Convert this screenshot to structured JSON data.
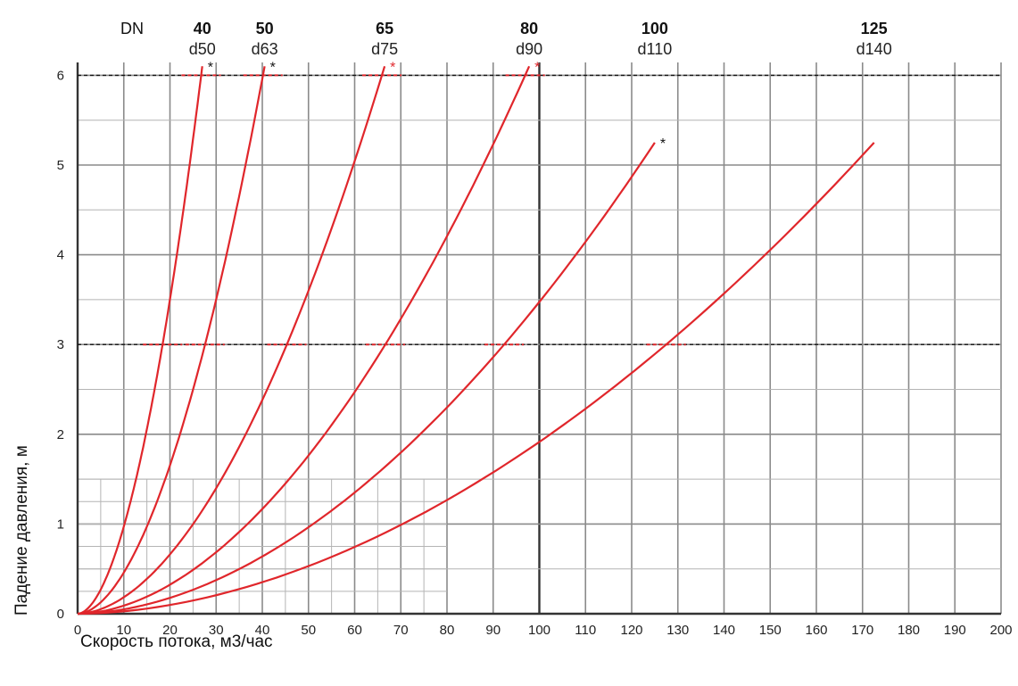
{
  "chart_data": {
    "type": "line",
    "title": "",
    "xlabel": "Скорость потока,  м3/час",
    "ylabel": "Падение давления, м",
    "xlim": [
      0,
      200
    ],
    "ylim": [
      0,
      6.2
    ],
    "x_ticks": [
      0,
      10,
      20,
      30,
      40,
      50,
      60,
      70,
      80,
      90,
      100,
      110,
      120,
      130,
      140,
      150,
      160,
      170,
      180,
      190,
      200
    ],
    "y_ticks": [
      0,
      1,
      2,
      3,
      4,
      5,
      6
    ],
    "grid": true,
    "reference_lines_y": [
      3,
      6
    ],
    "dn_caption": "DN",
    "colors": {
      "curve": "#e0262b",
      "grid": "#8a8a8a",
      "text": "#111111"
    },
    "series": [
      {
        "name": "40",
        "diameter": "d50",
        "x": [
          0,
          27
        ],
        "y": [
          0,
          6.1
        ],
        "exponent": 1.85,
        "star": true,
        "star_color": "#111111"
      },
      {
        "name": "50",
        "diameter": "d63",
        "x": [
          0,
          40.5
        ],
        "y": [
          0,
          6.1
        ],
        "exponent": 1.85,
        "star": true,
        "star_color": "#111111"
      },
      {
        "name": "65",
        "diameter": "d75",
        "x": [
          0,
          66.5
        ],
        "y": [
          0,
          6.1
        ],
        "exponent": 1.85,
        "star": true,
        "star_color": "#e0262b"
      },
      {
        "name": "80",
        "diameter": "d90",
        "x": [
          0,
          97.8
        ],
        "y": [
          0,
          6.1
        ],
        "exponent": 1.85,
        "star": true,
        "star_color": "#e0262b"
      },
      {
        "name": "100",
        "diameter": "d110",
        "x": [
          0,
          125
        ],
        "y": [
          0,
          5.25
        ],
        "exponent": 1.85,
        "star": true,
        "star_color": "#111111"
      },
      {
        "name": "125",
        "diameter": "d140",
        "x": [
          0,
          172.5
        ],
        "y": [
          0,
          5.25
        ],
        "exponent": 1.85,
        "star": false,
        "star_color": "#111111"
      }
    ],
    "star_symbol": "*"
  }
}
